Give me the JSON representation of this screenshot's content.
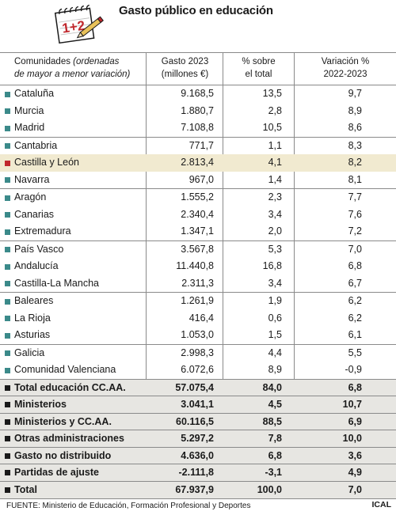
{
  "title": "Gasto público en educación",
  "logo": {
    "text": "1+2",
    "icon": "notepad-with-pencil-icon"
  },
  "headers": {
    "name_line1": "Comunidades",
    "name_paren1": "(ordenadas",
    "name_line2": "de mayor a menor variación)",
    "gasto_line1": "Gasto 2023",
    "gasto_line2": "(millones €)",
    "pct_line1": "% sobre",
    "pct_line2": "el total",
    "var_line1": "Variación %",
    "var_line2": "2022-2023"
  },
  "rows": [
    {
      "name": "Cataluña",
      "gasto": "9.168,5",
      "pct": "13,5",
      "var": "9,7"
    },
    {
      "name": "Murcia",
      "gasto": "1.880,7",
      "pct": "2,8",
      "var": "8,9"
    },
    {
      "name": "Madrid",
      "gasto": "7.108,8",
      "pct": "10,5",
      "var": "8,6"
    },
    {
      "name": "Cantabria",
      "gasto": "771,7",
      "pct": "1,1",
      "var": "8,3"
    },
    {
      "name": "Castilla y León",
      "gasto": "2.813,4",
      "pct": "4,1",
      "var": "8,2"
    },
    {
      "name": "Navarra",
      "gasto": "967,0",
      "pct": "1,4",
      "var": "8,1"
    },
    {
      "name": "Aragón",
      "gasto": "1.555,2",
      "pct": "2,3",
      "var": "7,7"
    },
    {
      "name": "Canarias",
      "gasto": "2.340,4",
      "pct": "3,4",
      "var": "7,6"
    },
    {
      "name": "Extremadura",
      "gasto": "1.347,1",
      "pct": "2,0",
      "var": "7,2"
    },
    {
      "name": "País Vasco",
      "gasto": "3.567,8",
      "pct": "5,3",
      "var": "7,0"
    },
    {
      "name": "Andalucía",
      "gasto": "11.440,8",
      "pct": "16,8",
      "var": "6,8"
    },
    {
      "name": "Castilla-La Mancha",
      "gasto": "2.311,3",
      "pct": "3,4",
      "var": "6,7"
    },
    {
      "name": "Baleares",
      "gasto": "1.261,9",
      "pct": "1,9",
      "var": "6,2"
    },
    {
      "name": "La Rioja",
      "gasto": "416,4",
      "pct": "0,6",
      "var": "6,2"
    },
    {
      "name": "Asturias",
      "gasto": "1.053,0",
      "pct": "1,5",
      "var": "6,1"
    },
    {
      "name": "Galicia",
      "gasto": "2.998,3",
      "pct": "4,4",
      "var": "5,5"
    },
    {
      "name": "Comunidad Valenciana",
      "gasto": "6.072,6",
      "pct": "8,9",
      "var": "-0,9"
    }
  ],
  "summary": [
    {
      "name": "Total educación CC.AA.",
      "gasto": "57.075,4",
      "pct": "84,0",
      "var": "6,8"
    },
    {
      "name": "Ministerios",
      "gasto": "3.041,1",
      "pct": "4,5",
      "var": "10,7"
    },
    {
      "name": "Ministerios y CC.AA.",
      "gasto": "60.116,5",
      "pct": "88,5",
      "var": "6,9"
    },
    {
      "name": "Otras administraciones",
      "gasto": "5.297,2",
      "pct": "7,8",
      "var": "10,0"
    },
    {
      "name": "Gasto no distribuido",
      "gasto": "4.636,0",
      "pct": "6,8",
      "var": "3,6"
    },
    {
      "name": "Partidas de ajuste",
      "gasto": "-2.111,8",
      "pct": "-3,1",
      "var": "4,9"
    },
    {
      "name": "Total",
      "gasto": "67.937,9",
      "pct": "100,0",
      "var": "7,0"
    }
  ],
  "footer": "FUENTE: Ministerio de Educación, Formación Profesional y Deportes",
  "brand": "ICAL",
  "colors": {
    "row_square": "#3b8a8a",
    "highlight_square": "#c0282d",
    "highlight_bg": "#f1ead0",
    "summary_bg": "#e7e6e2"
  }
}
